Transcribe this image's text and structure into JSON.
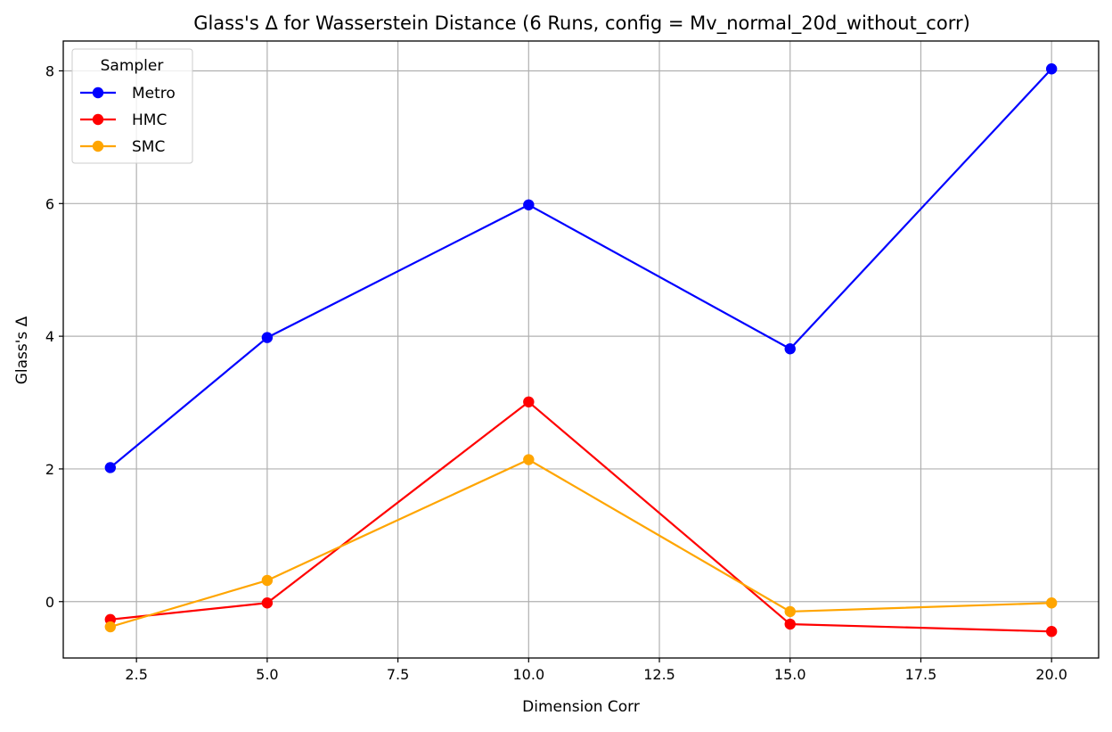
{
  "chart_data": {
    "type": "line",
    "title": "Glass's Δ for Wasserstein Distance (6 Runs, config = Mv_normal_20d_without_corr)",
    "xlabel": "Dimension Corr",
    "ylabel": "Glass's Δ",
    "x": [
      2,
      5,
      10,
      15,
      20
    ],
    "xlim": [
      1.1,
      20.9
    ],
    "ylim": [
      -0.85,
      8.45
    ],
    "xticks": [
      2.5,
      5.0,
      7.5,
      10.0,
      12.5,
      15.0,
      17.5,
      20.0
    ],
    "xtick_labels": [
      "2.5",
      "5.0",
      "7.5",
      "10.0",
      "12.5",
      "15.0",
      "17.5",
      "20.0"
    ],
    "yticks": [
      0,
      2,
      4,
      6,
      8
    ],
    "ytick_labels": [
      "0",
      "2",
      "4",
      "6",
      "8"
    ],
    "grid": true,
    "legend": {
      "title": "Sampler",
      "placement": "top-left"
    },
    "series": [
      {
        "name": "Metro",
        "color": "#0000ff",
        "values": [
          2.02,
          3.98,
          5.98,
          3.81,
          8.03
        ]
      },
      {
        "name": "HMC",
        "color": "#ff0000",
        "values": [
          -0.27,
          -0.02,
          3.01,
          -0.34,
          -0.45
        ]
      },
      {
        "name": "SMC",
        "color": "#ffa500",
        "values": [
          -0.38,
          0.32,
          2.14,
          -0.15,
          -0.02
        ]
      }
    ]
  }
}
